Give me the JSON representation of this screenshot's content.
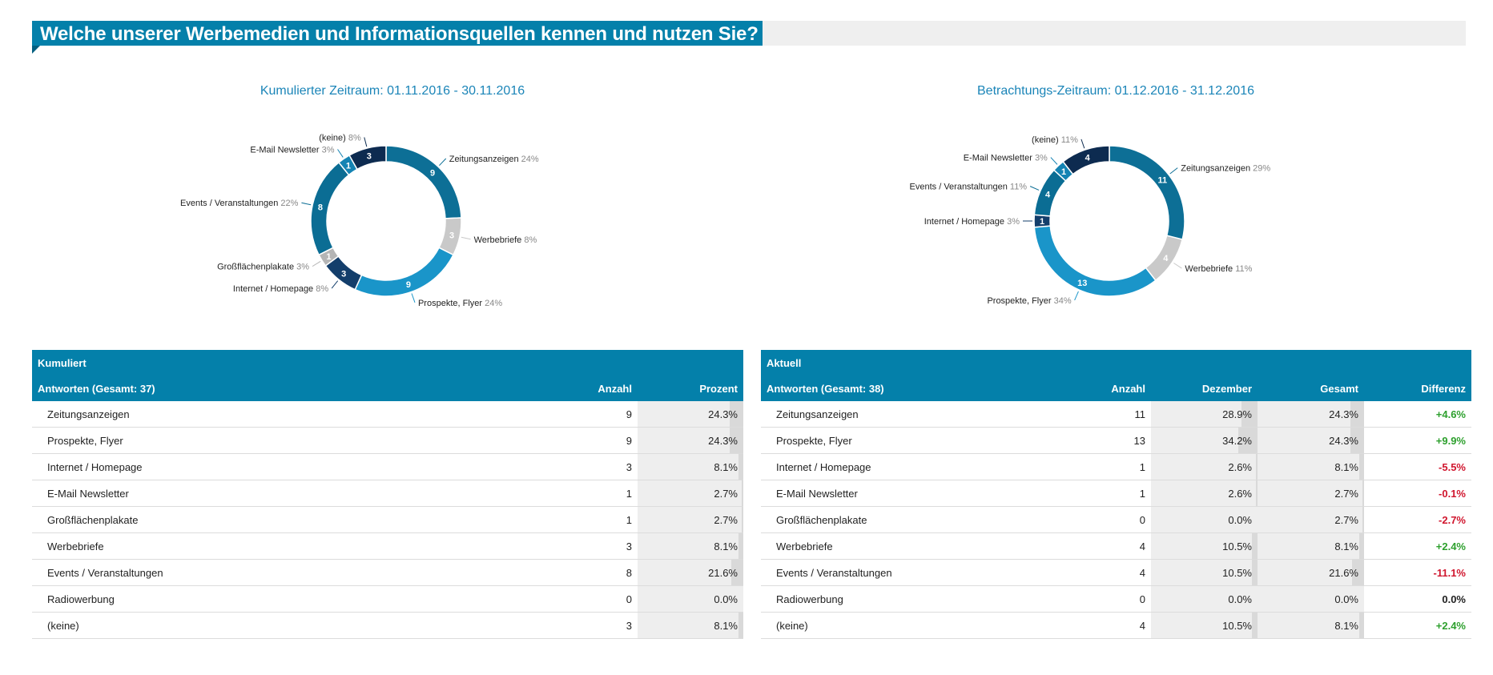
{
  "page": {
    "title": "Welche unserer Werbemedien und Informationsquellen kennen und nutzen Sie?"
  },
  "chart_data": [
    {
      "type": "pie",
      "title": "Kumulierter Zeitraum: 01.11.2016 - 30.11.2016",
      "labels": [
        "Zeitungsanzeigen",
        "Werbebriefe",
        "Prospekte, Flyer",
        "Internet / Homepage",
        "Großflächenplakate",
        "Events / Veranstaltungen",
        "E-Mail Newsletter",
        "(keine)"
      ],
      "values": [
        9,
        3,
        9,
        3,
        1,
        8,
        1,
        3
      ],
      "percents": [
        "24%",
        "8%",
        "24%",
        "8%",
        "3%",
        "22%",
        "3%",
        "8%"
      ],
      "colors": [
        "#0d6f96",
        "#c9c9c9",
        "#1a95c9",
        "#133e6b",
        "#b5b5b5",
        "#0b6d94",
        "#1483b3",
        "#0d2b50"
      ]
    },
    {
      "type": "pie",
      "title": "Betrachtungs-Zeitraum: 01.12.2016 - 31.12.2016",
      "labels": [
        "Zeitungsanzeigen",
        "Werbebriefe",
        "Prospekte, Flyer",
        "Internet / Homepage",
        "Events / Veranstaltungen",
        "E-Mail Newsletter",
        "(keine)"
      ],
      "values": [
        11,
        4,
        13,
        1,
        4,
        1,
        4
      ],
      "percents": [
        "29%",
        "11%",
        "34%",
        "3%",
        "11%",
        "3%",
        "11%"
      ],
      "colors": [
        "#0d6f96",
        "#c9c9c9",
        "#1a95c9",
        "#133e6b",
        "#0b6d94",
        "#1483b3",
        "#0d2b50"
      ]
    }
  ],
  "tables": [
    {
      "group_label": "Kumuliert",
      "headers": [
        "Antworten (Gesamt: 37)",
        "Anzahl",
        "Prozent"
      ],
      "rows": [
        {
          "label": "Zeitungsanzeigen",
          "count": "9",
          "pct": "24.3%"
        },
        {
          "label": "Prospekte, Flyer",
          "count": "9",
          "pct": "24.3%"
        },
        {
          "label": "Internet / Homepage",
          "count": "3",
          "pct": "8.1%"
        },
        {
          "label": "E-Mail Newsletter",
          "count": "1",
          "pct": "2.7%"
        },
        {
          "label": "Großflächenplakate",
          "count": "1",
          "pct": "2.7%"
        },
        {
          "label": "Werbebriefe",
          "count": "3",
          "pct": "8.1%"
        },
        {
          "label": "Events / Veranstaltungen",
          "count": "8",
          "pct": "21.6%"
        },
        {
          "label": "Radiowerbung",
          "count": "0",
          "pct": "0.0%"
        },
        {
          "label": "(keine)",
          "count": "3",
          "pct": "8.1%"
        }
      ]
    },
    {
      "group_label": "Aktuell",
      "headers": [
        "Antworten (Gesamt: 38)",
        "Anzahl",
        "Dezember",
        "Gesamt",
        "Differenz"
      ],
      "rows": [
        {
          "label": "Zeitungsanzeigen",
          "count": "11",
          "dez": "28.9%",
          "ges": "24.3%",
          "diff": "+4.6%"
        },
        {
          "label": "Prospekte, Flyer",
          "count": "13",
          "dez": "34.2%",
          "ges": "24.3%",
          "diff": "+9.9%"
        },
        {
          "label": "Internet / Homepage",
          "count": "1",
          "dez": "2.6%",
          "ges": "8.1%",
          "diff": "-5.5%"
        },
        {
          "label": "E-Mail Newsletter",
          "count": "1",
          "dez": "2.6%",
          "ges": "2.7%",
          "diff": "-0.1%"
        },
        {
          "label": "Großflächenplakate",
          "count": "0",
          "dez": "0.0%",
          "ges": "2.7%",
          "diff": "-2.7%"
        },
        {
          "label": "Werbebriefe",
          "count": "4",
          "dez": "10.5%",
          "ges": "8.1%",
          "diff": "+2.4%"
        },
        {
          "label": "Events / Veranstaltungen",
          "count": "4",
          "dez": "10.5%",
          "ges": "21.6%",
          "diff": "-11.1%"
        },
        {
          "label": "Radiowerbung",
          "count": "0",
          "dez": "0.0%",
          "ges": "0.0%",
          "diff": "0.0%"
        },
        {
          "label": "(keine)",
          "count": "4",
          "dez": "10.5%",
          "ges": "8.1%",
          "diff": "+2.4%"
        }
      ]
    }
  ]
}
